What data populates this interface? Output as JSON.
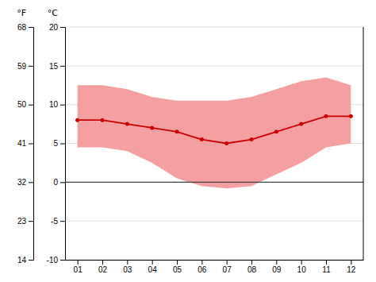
{
  "chart_data": {
    "type": "line",
    "categories": [
      "01",
      "02",
      "03",
      "04",
      "05",
      "06",
      "07",
      "08",
      "09",
      "10",
      "11",
      "12"
    ],
    "series": [
      {
        "type": "band",
        "color": "#f5a0a0",
        "low": [
          4.5,
          4.5,
          4.0,
          2.5,
          0.5,
          -0.5,
          -0.8,
          -0.5,
          1.0,
          2.5,
          4.5,
          5.0
        ],
        "high": [
          12.5,
          12.5,
          12.0,
          11.0,
          10.5,
          10.5,
          10.5,
          11.0,
          12.0,
          13.0,
          13.5,
          12.5
        ]
      },
      {
        "type": "line",
        "color": "#cc0000",
        "marker": "circle",
        "values": [
          8.0,
          8.0,
          7.5,
          7.0,
          6.5,
          5.5,
          5.0,
          5.5,
          6.5,
          7.5,
          8.5,
          8.5
        ]
      }
    ],
    "hline": {
      "value": 0,
      "color": "#444444"
    },
    "ylabel": "°C",
    "ylim": [
      -10,
      20
    ],
    "yticks": [
      -10,
      -5,
      0,
      5,
      10,
      15,
      20
    ],
    "y2label": "°F",
    "y2lim": [
      14,
      68
    ],
    "y2ticks": [
      14,
      23,
      32,
      41,
      50,
      59,
      68
    ],
    "grid": true
  }
}
